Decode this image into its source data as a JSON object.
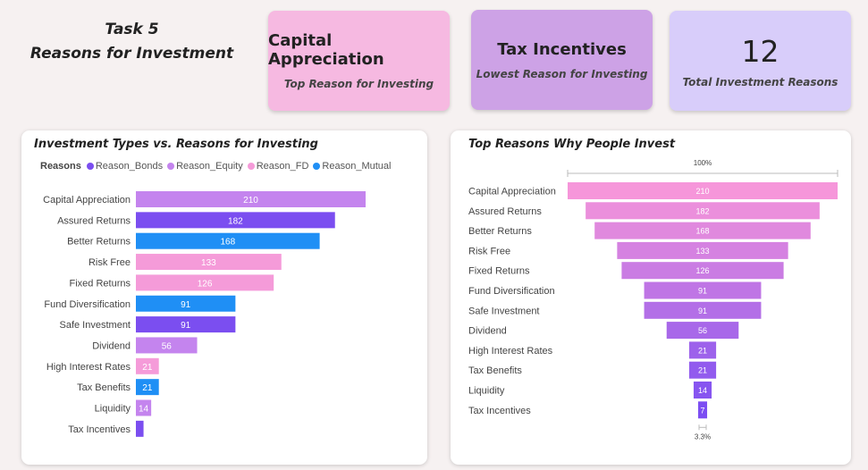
{
  "header": {
    "line1": "Task 5",
    "line2": "Reasons for Investment"
  },
  "kpis": [
    {
      "value": "Capital Appreciation",
      "label": "Top Reason for Investing"
    },
    {
      "value": "Tax Incentives",
      "label": "Lowest Reason for Investing"
    },
    {
      "value": "12",
      "label": "Total Investment Reasons"
    }
  ],
  "colors": {
    "Reason_Bonds": "#7b4ef0",
    "Reason_Equity": "#c484ee",
    "Reason_FD": "#f59bd9",
    "Reason_Mutual": "#1f8ff5"
  },
  "chart_data": [
    {
      "type": "bar",
      "orientation": "horizontal",
      "title": "Investment Types vs. Reasons for Investing",
      "legend_title": "Reasons",
      "legend_position": "top",
      "legend": [
        "Reason_Bonds",
        "Reason_Equity",
        "Reason_FD",
        "Reason_Mutual"
      ],
      "categories": [
        "Capital Appreciation",
        "Assured Returns",
        "Better Returns",
        "Risk Free",
        "Fixed Returns",
        "Fund Diversification",
        "Safe Investment",
        "Dividend",
        "High Interest Rates",
        "Tax Benefits",
        "Liquidity",
        "Tax Incentives"
      ],
      "values": [
        210,
        182,
        168,
        133,
        126,
        91,
        91,
        56,
        21,
        21,
        14,
        7
      ],
      "series_of_category": [
        "Reason_Equity",
        "Reason_Bonds",
        "Reason_Mutual",
        "Reason_FD",
        "Reason_FD",
        "Reason_Mutual",
        "Reason_Bonds",
        "Reason_Equity",
        "Reason_FD",
        "Reason_Mutual",
        "Reason_Equity",
        "Reason_Bonds"
      ],
      "value_labels": [
        "210",
        "182",
        "168",
        "133",
        "126",
        "91",
        "91",
        "56",
        "21",
        "21",
        "14",
        ""
      ],
      "xlim": [
        0,
        210
      ]
    },
    {
      "type": "funnel",
      "title": "Top Reasons Why People Invest",
      "categories": [
        "Capital Appreciation",
        "Assured Returns",
        "Better Returns",
        "Risk Free",
        "Fixed Returns",
        "Fund Diversification",
        "Safe Investment",
        "Dividend",
        "High Interest Rates",
        "Tax Benefits",
        "Liquidity",
        "Tax Incentives"
      ],
      "values": [
        210,
        182,
        168,
        133,
        126,
        91,
        91,
        56,
        21,
        21,
        14,
        7
      ],
      "top_label": "100%",
      "bottom_label": "3.3%"
    }
  ]
}
